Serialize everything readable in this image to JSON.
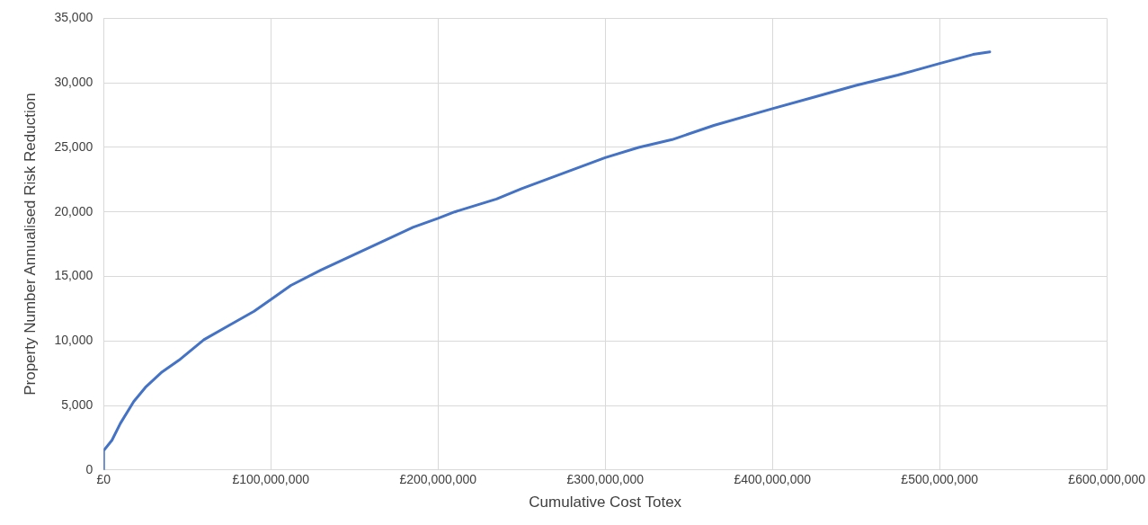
{
  "chart_data": {
    "type": "line",
    "xlabel": "Cumulative Cost Totex",
    "ylabel": "Property Number Annualised Risk Reduction",
    "x": [
      0,
      0,
      5000000,
      10000000,
      18000000,
      25000000,
      35000000,
      45000000,
      60000000,
      75000000,
      90000000,
      100000000,
      112000000,
      130000000,
      150000000,
      170000000,
      185000000,
      200000000,
      210000000,
      235000000,
      250000000,
      275000000,
      300000000,
      320000000,
      340000000,
      365000000,
      400000000,
      425000000,
      450000000,
      475000000,
      500000000,
      520000000,
      530000000
    ],
    "series": [
      {
        "color": "#4472c4",
        "values": [
          0,
          1500,
          2300,
          3600,
          5300,
          6400,
          7600,
          8500,
          10100,
          11200,
          12300,
          13200,
          14300,
          15500,
          16700,
          17900,
          18800,
          19500,
          20000,
          21000,
          21800,
          23000,
          24200,
          25000,
          25600,
          26700,
          28000,
          28900,
          29800,
          30600,
          31500,
          32200,
          32400
        ]
      }
    ],
    "xlim": [
      0,
      600000000
    ],
    "xticks": [
      {
        "value": 0,
        "label": "£0"
      },
      {
        "value": 100000000,
        "label": "£100,000,000"
      },
      {
        "value": 200000000,
        "label": "£200,000,000"
      },
      {
        "value": 300000000,
        "label": "£300,000,000"
      },
      {
        "value": 400000000,
        "label": "£400,000,000"
      },
      {
        "value": 500000000,
        "label": "£500,000,000"
      },
      {
        "value": 600000000,
        "label": "£600,000,000"
      }
    ],
    "ylim": [
      0,
      35000
    ],
    "yticks": [
      {
        "value": 0,
        "label": "0"
      },
      {
        "value": 5000,
        "label": "5,000"
      },
      {
        "value": 10000,
        "label": "10,000"
      },
      {
        "value": 15000,
        "label": "15,000"
      },
      {
        "value": 20000,
        "label": "20,000"
      },
      {
        "value": 25000,
        "label": "25,000"
      },
      {
        "value": 30000,
        "label": "30,000"
      },
      {
        "value": 35000,
        "label": "35,000"
      }
    ],
    "grid": true,
    "legend": false,
    "marker": "none",
    "line_style": "solid"
  }
}
